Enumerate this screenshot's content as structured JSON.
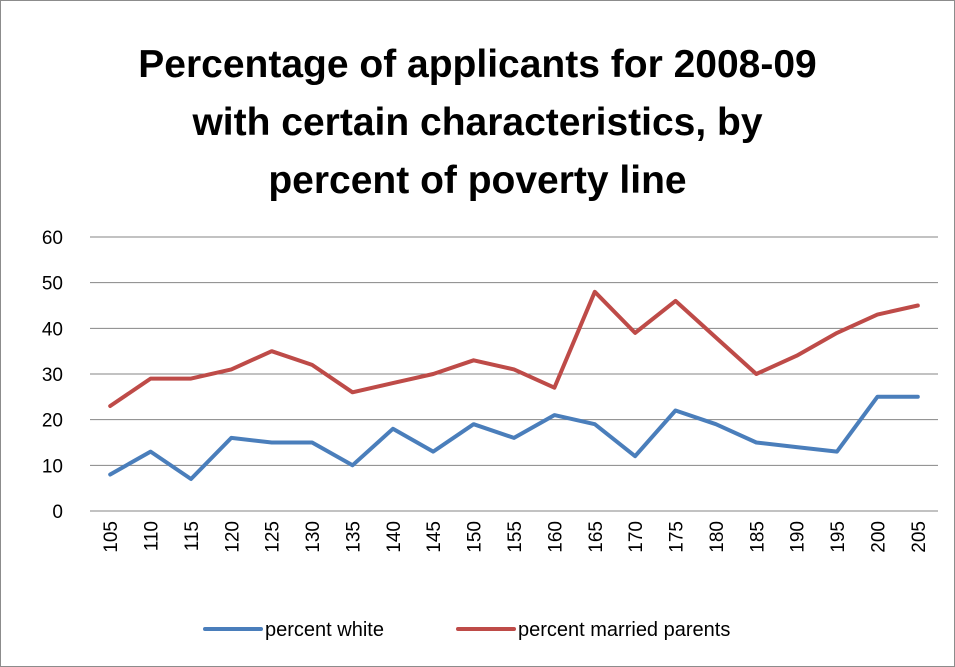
{
  "chart_data": {
    "type": "line",
    "title_lines": [
      "Percentage of applicants for 2008-09",
      "with certain characteristics, by",
      "percent of poverty line"
    ],
    "xlabel": "",
    "ylabel": "",
    "ylim": [
      0,
      60
    ],
    "yticks": [
      "0",
      "10",
      "20",
      "30",
      "40",
      "50",
      "60"
    ],
    "categories": [
      "105",
      "110",
      "115",
      "120",
      "125",
      "130",
      "135",
      "140",
      "145",
      "150",
      "155",
      "160",
      "165",
      "170",
      "175",
      "180",
      "185",
      "190",
      "195",
      "200",
      "205"
    ],
    "grid": true,
    "legend_position": "bottom",
    "series": [
      {
        "name": "percent white",
        "color": "#4a7ebb",
        "values": [
          8,
          13,
          7,
          16,
          15,
          15,
          10,
          18,
          13,
          19,
          16,
          21,
          19,
          12,
          22,
          19,
          15,
          14,
          13,
          25,
          25
        ]
      },
      {
        "name": "percent married parents",
        "color": "#be4b48",
        "values": [
          23,
          29,
          29,
          31,
          35,
          32,
          26,
          28,
          30,
          33,
          31,
          27,
          48,
          39,
          46,
          38,
          30,
          34,
          39,
          43,
          45
        ]
      }
    ]
  }
}
